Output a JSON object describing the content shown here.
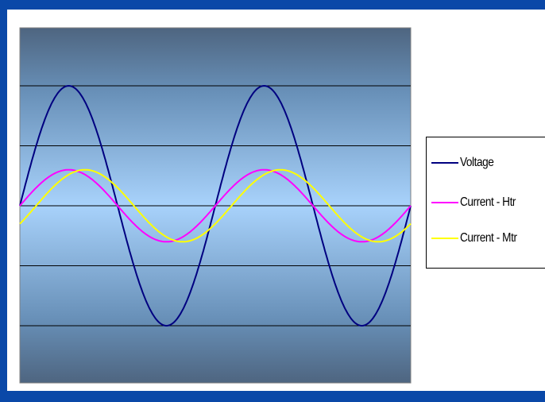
{
  "chart_data": {
    "type": "line",
    "title": "",
    "xlabel": "",
    "ylabel": "",
    "grid": true,
    "legend_position": "right",
    "x_unit": "degrees",
    "xlim": [
      0,
      720
    ],
    "ylim": [
      -1.3,
      1.3
    ],
    "series": [
      {
        "name": "Voltage",
        "color": "#000080",
        "amplitude": 1.0,
        "phase_deg": 0
      },
      {
        "name": "Current - Htr",
        "color": "#ff00ff",
        "amplitude": 0.3,
        "phase_deg": 0
      },
      {
        "name": "Current - Mtr",
        "color": "#ffff00",
        "amplitude": 0.3,
        "phase_deg": -30
      }
    ]
  },
  "legend": {
    "items": [
      "Voltage",
      "Current - Htr",
      "Current - Mtr"
    ]
  }
}
